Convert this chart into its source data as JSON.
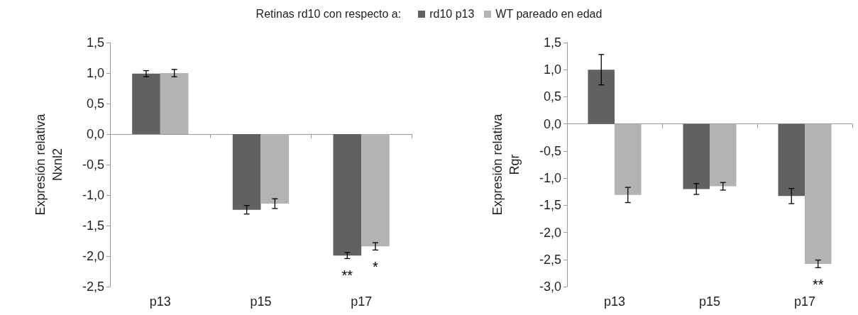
{
  "chart_data": [
    {
      "type": "bar",
      "legend_title": "Retinas rd10 con respecto a:",
      "legend": "top",
      "ylabel": "Expresión relativa Nxnl2",
      "categories": [
        "p13",
        "p15",
        "p17"
      ],
      "series": [
        {
          "name": "rd10 p13",
          "color": "#616161",
          "values": [
            0.99,
            -1.24,
            -1.99
          ],
          "errors": [
            0.05,
            0.07,
            0.05
          ]
        },
        {
          "name": "WT pareado en edad",
          "color": "#b3b3b3",
          "values": [
            1.0,
            -1.14,
            -1.84
          ],
          "errors": [
            0.06,
            0.08,
            0.06
          ]
        }
      ],
      "ylim": [
        -2.5,
        1.5
      ],
      "yticks": [
        {
          "value": 1.5,
          "label": "1,5"
        },
        {
          "value": 1.0,
          "label": "1,0"
        },
        {
          "value": 0.5,
          "label": "0,5"
        },
        {
          "value": 0,
          "label": "0,0"
        },
        {
          "value": -0.5,
          "label": "-0,5"
        },
        {
          "value": -1.0,
          "label": "-1,0"
        },
        {
          "value": -1.5,
          "label": "-1,5"
        },
        {
          "value": -2.0,
          "label": "-2,0"
        },
        {
          "value": -2.5,
          "label": "-2,5"
        }
      ],
      "annotations": [
        {
          "text": "**",
          "x": "p17",
          "y": -1.99
        },
        {
          "text": "*",
          "x": "p17",
          "y": -1.84
        }
      ]
    },
    {
      "type": "bar",
      "legend": false,
      "ylabel": "Expresión relativa Rgr",
      "categories": [
        "p13",
        "p15",
        "p17"
      ],
      "series": [
        {
          "color": "#616161",
          "values": [
            1.0,
            -1.2,
            -1.33
          ],
          "errors": [
            0.28,
            0.1,
            0.14
          ]
        },
        {
          "color": "#b3b3b3",
          "values": [
            -1.31,
            -1.15,
            -2.58
          ],
          "errors": [
            0.14,
            0.07,
            0.07
          ]
        }
      ],
      "ylim": [
        -3.0,
        1.5
      ],
      "yticks": [
        {
          "value": 1.5,
          "label": "1,5"
        },
        {
          "value": 1.0,
          "label": "1,0"
        },
        {
          "value": 0.5,
          "label": "0,5"
        },
        {
          "value": 0,
          "label": "0,0"
        },
        {
          "value": -0.5,
          "label": "-0,5"
        },
        {
          "value": -1.0,
          "label": "-1,0"
        },
        {
          "value": -1.5,
          "label": "-1,5"
        },
        {
          "value": -2.0,
          "label": "-2,0"
        },
        {
          "value": -2.5,
          "label": "-2,5"
        },
        {
          "value": -3.0,
          "label": "-3,0"
        }
      ],
      "annotations": [
        {
          "text": "**",
          "x": "p17",
          "y": -2.58
        }
      ]
    }
  ]
}
